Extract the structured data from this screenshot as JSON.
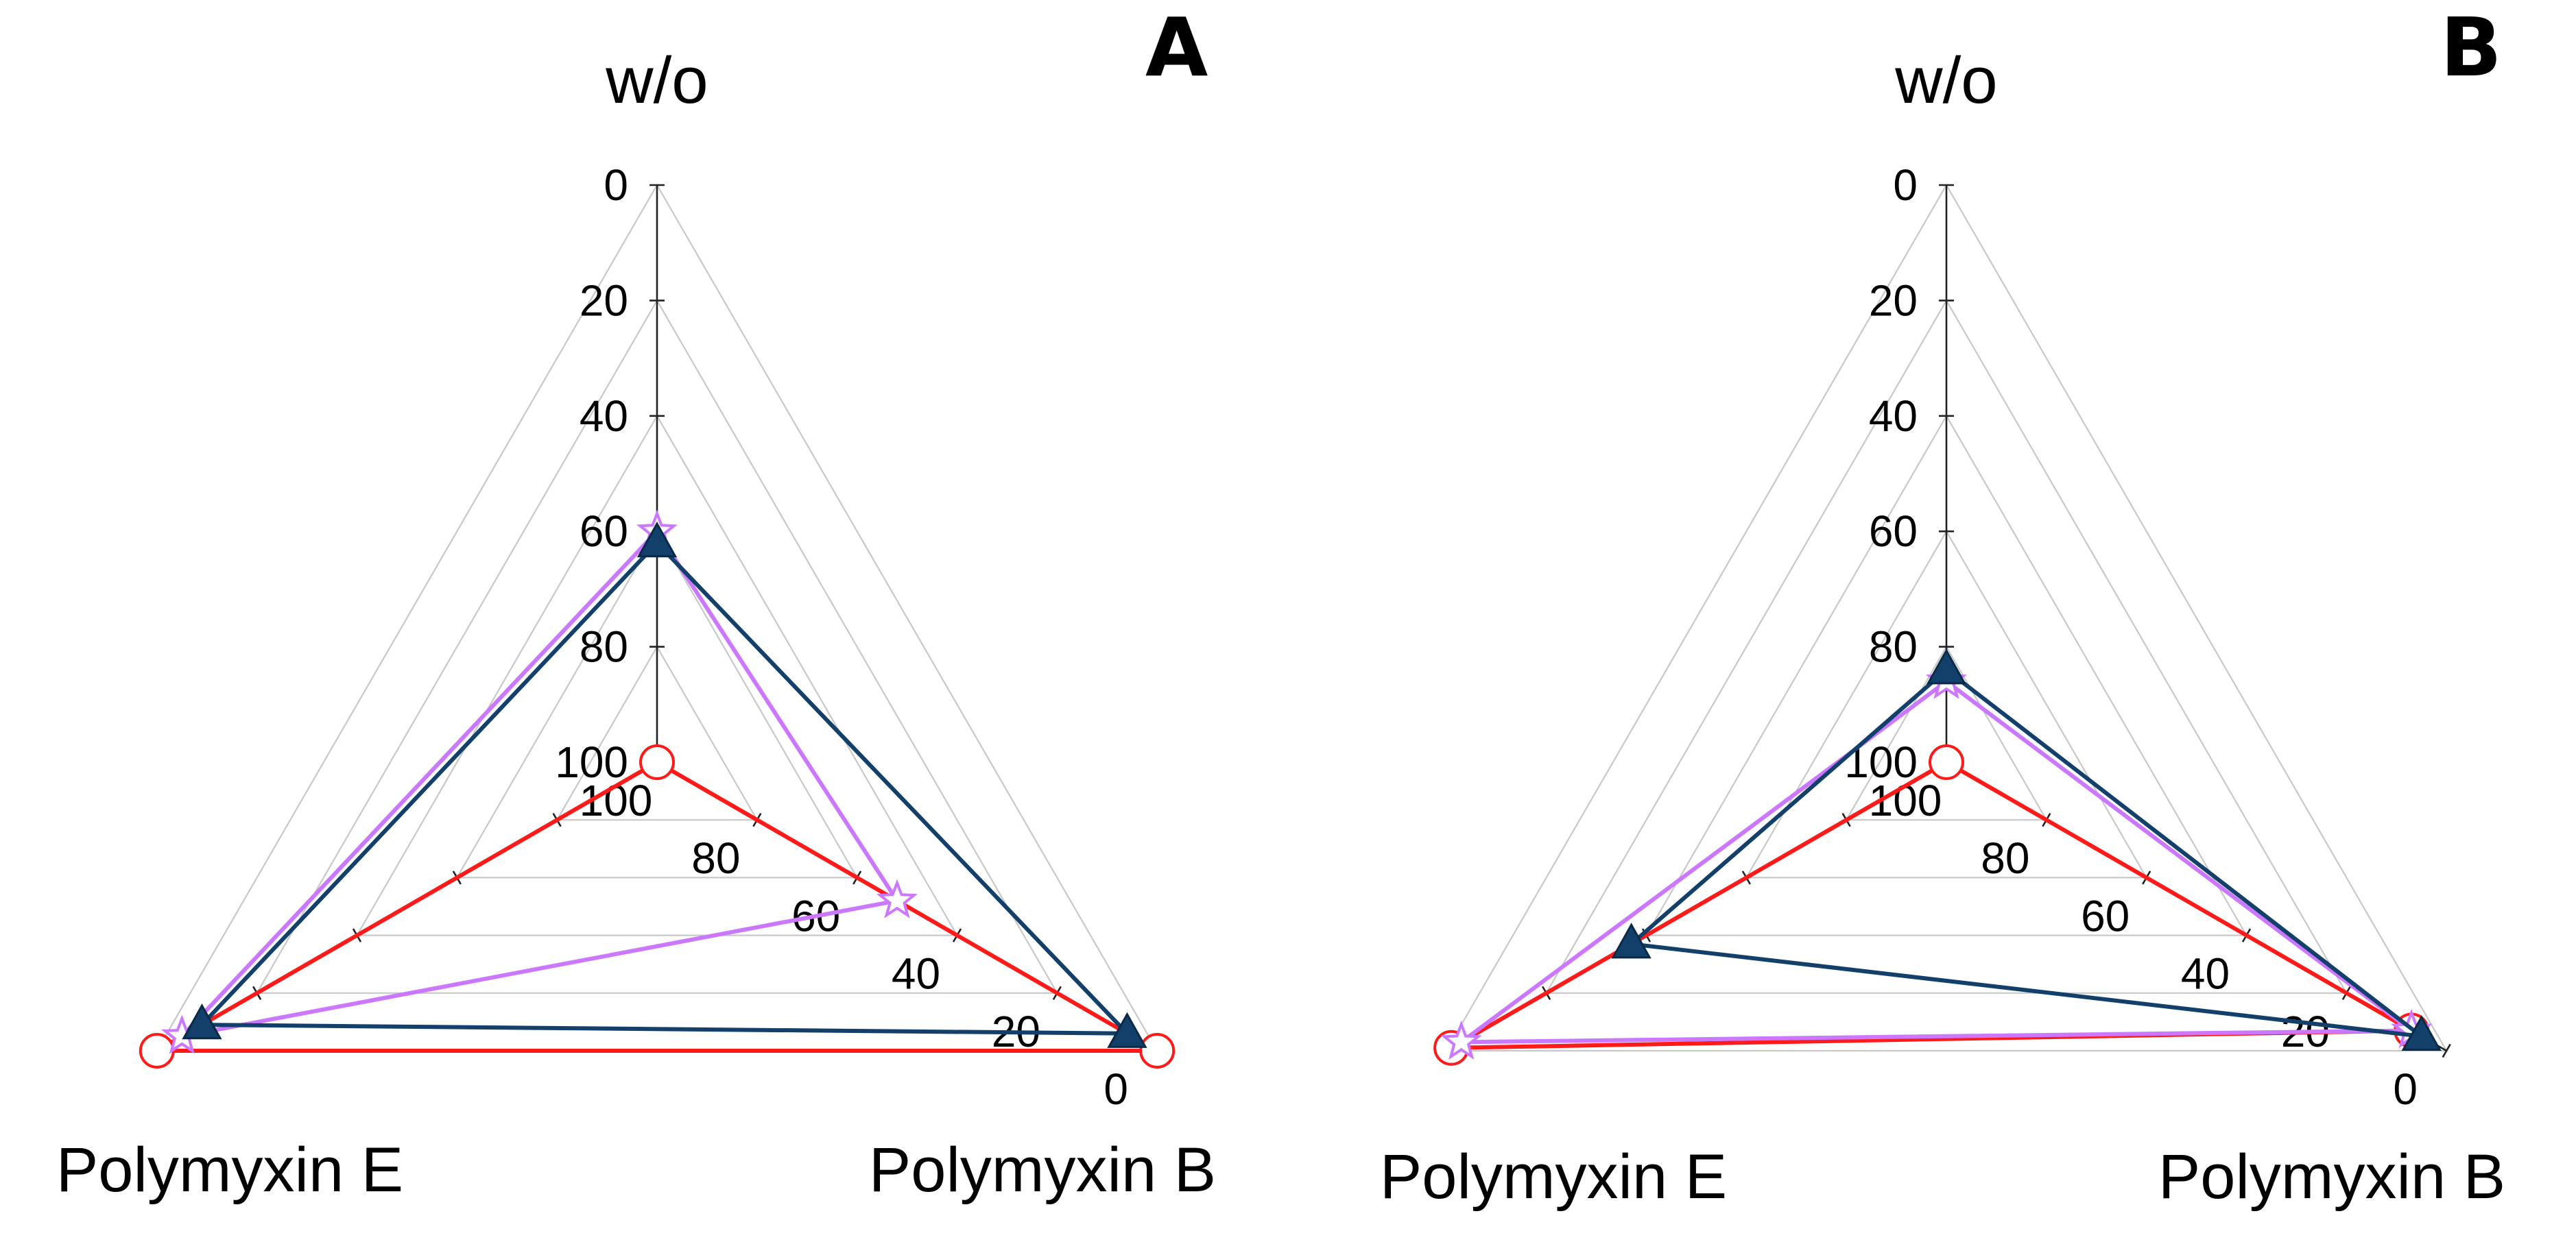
{
  "chart_data": [
    {
      "type": "radar",
      "panel_label": "A",
      "axes": [
        "w/o",
        "Polymyxin B",
        "Polymyxin E"
      ],
      "radial_range": [
        100,
        0
      ],
      "radial_ticks": [
        0,
        20,
        40,
        60,
        80,
        100
      ],
      "grid": true,
      "series": [
        {
          "name": "series-red-circle",
          "color": "#ff1a1a",
          "marker": "circle-open",
          "values": [
            100,
            0,
            0
          ]
        },
        {
          "name": "series-violet-star",
          "color": "#cc77ff",
          "marker": "star-open",
          "values": [
            60,
            52,
            5
          ]
        },
        {
          "name": "series-navy-triangle",
          "color": "#12406b",
          "marker": "triangle-filled",
          "values": [
            62,
            6,
            9
          ]
        }
      ]
    },
    {
      "type": "radar",
      "panel_label": "B",
      "axes": [
        "w/o",
        "Polymyxin B",
        "Polymyxin E"
      ],
      "radial_range": [
        100,
        0
      ],
      "radial_ticks": [
        0,
        20,
        40,
        60,
        80,
        100
      ],
      "grid": true,
      "series": [
        {
          "name": "series-red-circle",
          "color": "#ff1a1a",
          "marker": "circle-open",
          "values": [
            100,
            7,
            1
          ]
        },
        {
          "name": "series-violet-star",
          "color": "#cc77ff",
          "marker": "star-open",
          "values": [
            86,
            7,
            3
          ]
        },
        {
          "name": "series-navy-triangle",
          "color": "#12406b",
          "marker": "triangle-filled",
          "values": [
            84,
            5,
            37
          ]
        }
      ]
    }
  ]
}
